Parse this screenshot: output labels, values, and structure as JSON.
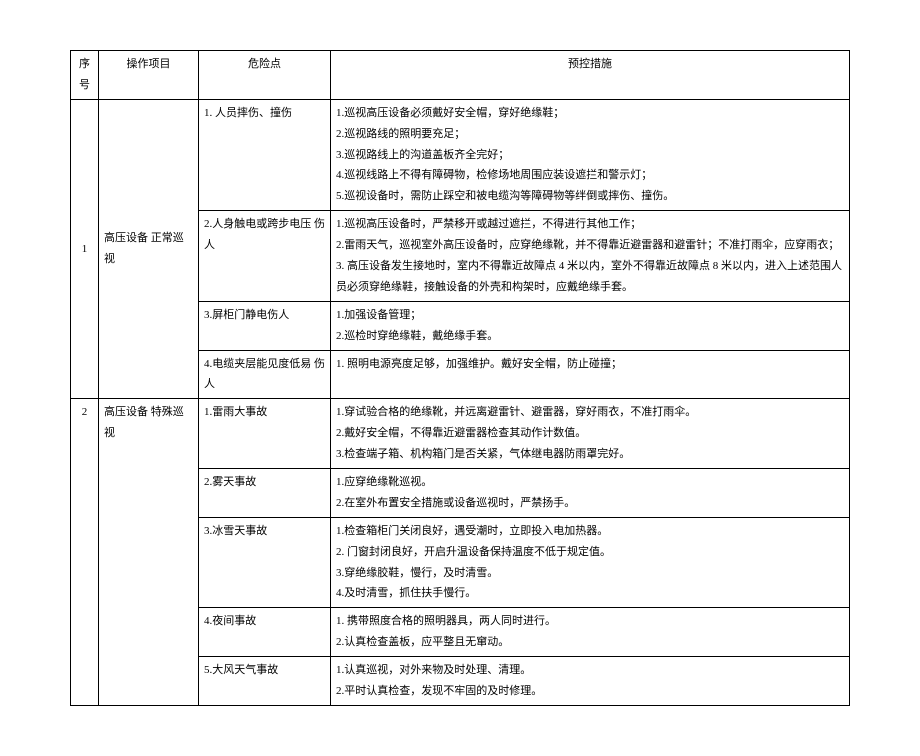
{
  "table": {
    "headers": {
      "seq": "序号",
      "op": "操作项目",
      "risk": "危险点",
      "measure": "预控措施"
    },
    "rows": {
      "r1": {
        "seq": "1",
        "op": "高压设备 正常巡视",
        "risk1": "1. 人员摔伤、撞伤",
        "meas1": "1.巡视高压设备必须戴好安全帽，穿好绝缘鞋；\n2.巡视路线的照明要充足；\n3.巡视路线上的沟道盖板齐全完好；\n4.巡视线路上不得有障碍物，检修场地周围应装设遮拦和警示灯；\n5.巡视设备时，需防止踩空和被电缆沟等障碍物等绊倒或摔伤、撞伤。",
        "risk2": "2.人身触电或跨步电压 伤人",
        "meas2": "1.巡视高压设备时，严禁移开或越过遮拦，不得进行其他工作；\n2.雷雨天气，巡视室外高压设备时，应穿绝缘靴，并不得靠近避雷器和避雷针；不准打雨伞，应穿雨衣；\n3. 高压设备发生接地时，室内不得靠近故障点 4 米以内，室外不得靠近故障点 8 米以内，进入上述范围人员必须穿绝缘鞋，接触设备的外壳和构架时，应戴绝缘手套。",
        "risk3": "3.屏柜门静电伤人",
        "meas3": "1.加强设备管理；\n2.巡检时穿绝缘鞋，戴绝缘手套。",
        "risk4": "4.电缆夹层能见度低易 伤人",
        "meas4": "1. 照明电源亮度足够，加强维护。戴好安全帽，防止碰撞；"
      },
      "r2": {
        "seq": "2",
        "op": "高压设备 特殊巡视",
        "risk1": "1.雷雨大事故",
        "meas1": "1.穿试验合格的绝缘靴，并远离避雷针、避雷器，穿好雨衣，不准打雨伞。\n2.戴好安全帽，不得靠近避雷器检查其动作计数值。\n3.检查端子箱、机构箱门是否关紧，气体继电器防雨罩完好。",
        "risk2": "2.雾天事故",
        "meas2": "1.应穿绝缘靴巡视。\n2.在室外布置安全措施或设备巡视时，严禁扬手。",
        "risk3": "3.冰雪天事故",
        "meas3": "1.检查箱柜门关闭良好，遇受潮时，立即投入电加热器。\n2. 门窗封闭良好，开启升温设备保持温度不低于规定值。\n3.穿绝缘胶鞋，慢行，及时清雪。\n4.及时清雪，抓住扶手慢行。",
        "risk4": "4.夜间事故",
        "meas4": "1. 携带照度合格的照明器具，两人同时进行。\n2.认真检查盖板，应平整且无窜动。",
        "risk5": "5.大风天气事故",
        "meas5": "1.认真巡视，对外来物及时处理、清理。\n2.平时认真检查，发现不牢固的及时修理。"
      }
    }
  },
  "style": {
    "font_size_pt": 9,
    "border_color": "#000000",
    "bg": "#ffffff",
    "text_color": "#000000"
  }
}
